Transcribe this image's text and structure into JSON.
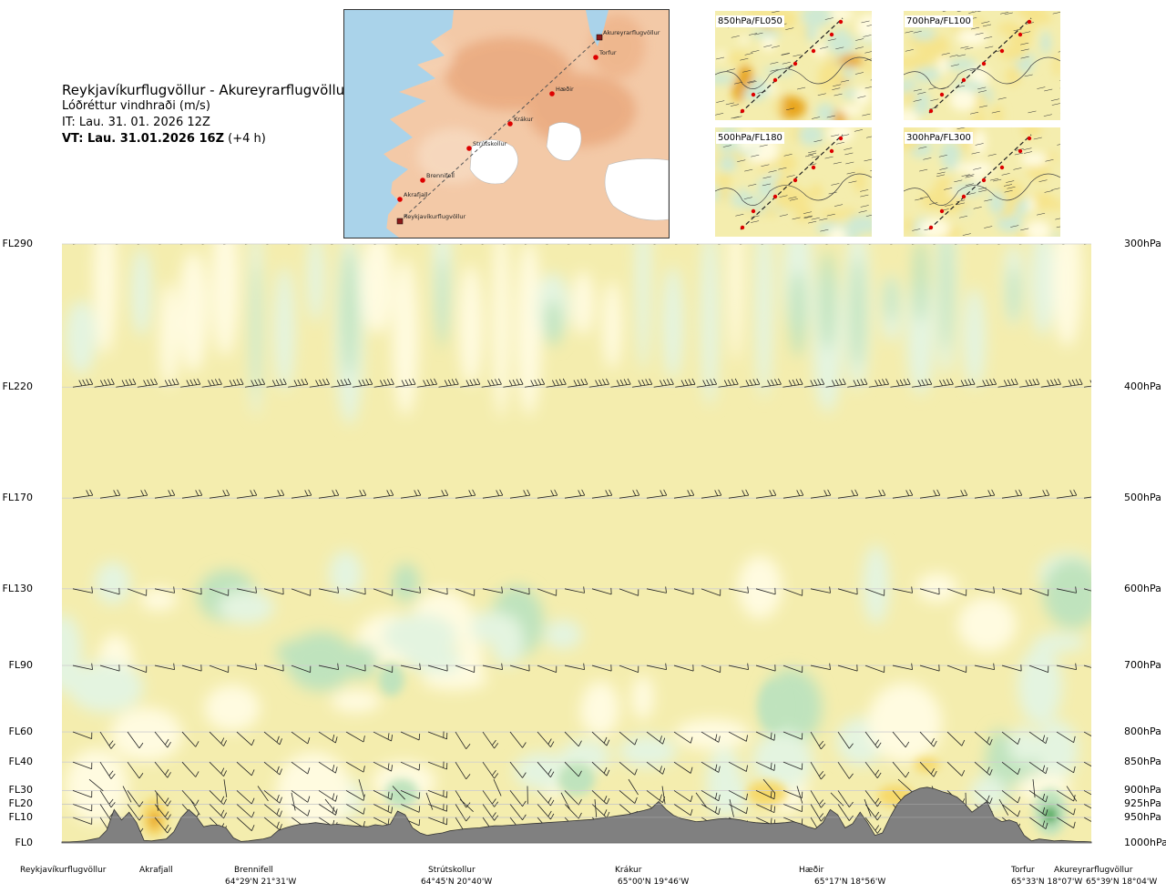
{
  "header": {
    "route": "Reykjavíkurflugvöllur - Akureyrarflugvöllur",
    "quantity": "Lóðréttur vindhraði (m/s)",
    "issue_time": "IT: Lau. 31. 01. 2026 12Z",
    "valid_time_bold": "VT: Lau. 31.01.2026 16Z",
    "valid_time_offset": "(+4 h)"
  },
  "map": {
    "points": [
      "Akureyrarflugvöllur",
      "Torfur",
      "Hæðir",
      "Krákur",
      "Strútskollur",
      "Brennifell",
      "Akrafjall",
      "Reykjavíkurflugvöllur"
    ],
    "colors": {
      "sea": "#aad3ea",
      "land": "#f3c9a7",
      "glacier": "#ffffff",
      "route": "#555555",
      "point": "#dd0000"
    }
  },
  "panels": [
    {
      "label": "850hPa/FL050"
    },
    {
      "label": "700hPa/FL100"
    },
    {
      "label": "500hPa/FL180"
    },
    {
      "label": "300hPa/FL300"
    }
  ],
  "chart_data": {
    "type": "heatmap",
    "title": "Reykjavíkurflugvöllur - Akureyrarflugvöllur",
    "quantity": "Lóðréttur vindhraði (m/s)",
    "y_levels": [
      {
        "fl": "FL290",
        "hpa": "300hPa",
        "value": 300
      },
      {
        "fl": "FL220",
        "hpa": "400hPa",
        "value": 400
      },
      {
        "fl": "FL170",
        "hpa": "500hPa",
        "value": 500
      },
      {
        "fl": "FL130",
        "hpa": "600hPa",
        "value": 600
      },
      {
        "fl": "FL90",
        "hpa": "700hPa",
        "value": 700
      },
      {
        "fl": "FL60",
        "hpa": "800hPa",
        "value": 800
      },
      {
        "fl": "FL40",
        "hpa": "850hPa",
        "value": 850
      },
      {
        "fl": "FL30",
        "hpa": "900hPa",
        "value": 900
      },
      {
        "fl": "FL20",
        "hpa": "925hPa",
        "value": 925
      },
      {
        "fl": "FL10",
        "hpa": "950hPa",
        "value": 950
      },
      {
        "fl": "FL0",
        "hpa": "1000hPa",
        "value": 1000
      }
    ],
    "ylim": [
      300,
      1000
    ],
    "y_scale": "log",
    "x_locations": [
      {
        "name": "Reykjavíkurflugvöllur",
        "coord": "",
        "frac": 0.0
      },
      {
        "name": "Akrafjall",
        "coord": "",
        "frac": 0.088
      },
      {
        "name": "Brennifell",
        "coord": "64°29'N 21°31'W",
        "frac": 0.184
      },
      {
        "name": "Strútskollur",
        "coord": "64°45'N 20°40'W",
        "frac": 0.378
      },
      {
        "name": "Krákur",
        "coord": "65°00'N 19°46'W",
        "frac": 0.57
      },
      {
        "name": "Hæðir",
        "coord": "65°17'N 18°56'W",
        "frac": 0.76
      },
      {
        "name": "Torfur",
        "coord": "65°33'N 18°07'W",
        "frac": 0.94
      },
      {
        "name": "Akureyrarflugvöllur",
        "coord": "65°39'N 18°04'W",
        "frac": 1.0
      }
    ],
    "terrain_surface_hpa": [
      998,
      998,
      997,
      996,
      993,
      990,
      975,
      935,
      955,
      940,
      960,
      995,
      996,
      994,
      992,
      978,
      950,
      935,
      948,
      968,
      965,
      965,
      970,
      990,
      997,
      996,
      994,
      992,
      988,
      975,
      970,
      966,
      963,
      962,
      960,
      962,
      964,
      963,
      965,
      966,
      967,
      968,
      964,
      966,
      963,
      938,
      945,
      970,
      980,
      985,
      982,
      980,
      976,
      974,
      972,
      971,
      970,
      968,
      966,
      966,
      965,
      964,
      963,
      962,
      961,
      960,
      959,
      958,
      957,
      956,
      955,
      954,
      952,
      950,
      948,
      946,
      944,
      940,
      937,
      933,
      920,
      935,
      946,
      952,
      955,
      958,
      957,
      955,
      953,
      952,
      953,
      955,
      958,
      960,
      961,
      962,
      961,
      960,
      958,
      962,
      968,
      972,
      960,
      935,
      945,
      970,
      962,
      940,
      960,
      985,
      980,
      950,
      925,
      910,
      902,
      896,
      894,
      897,
      902,
      906,
      912,
      924,
      940,
      930,
      920,
      950,
      958,
      955,
      960,
      985,
      996,
      992,
      994,
      996,
      995,
      996,
      997,
      997,
      998
    ],
    "colors": {
      "positive_weak": "#f4edae",
      "positive_mid": "#f6d96a",
      "positive_strong": "#e8a51f",
      "neutral": "#fffbe0",
      "negative_weak": "#e4f4e0",
      "negative_mid": "#bfe3bd",
      "negative_strong": "#4aa858",
      "terrain": "#808080"
    },
    "grid": true
  }
}
